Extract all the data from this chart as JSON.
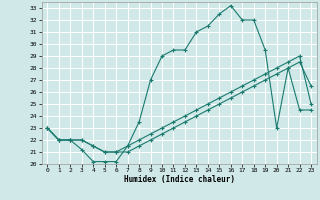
{
  "xlabel": "Humidex (Indice chaleur)",
  "background_color": "#d0e8e8",
  "grid_color": "#b8d8d8",
  "line_color": "#1a7a6e",
  "xlim": [
    -0.5,
    23.5
  ],
  "ylim": [
    20,
    33.5
  ],
  "yticks": [
    20,
    21,
    22,
    23,
    24,
    25,
    26,
    27,
    28,
    29,
    30,
    31,
    32,
    33
  ],
  "xticks": [
    0,
    1,
    2,
    3,
    4,
    5,
    6,
    7,
    8,
    9,
    10,
    11,
    12,
    13,
    14,
    15,
    16,
    17,
    18,
    19,
    20,
    21,
    22,
    23
  ],
  "line1_x": [
    0,
    1,
    2,
    3,
    4,
    5,
    6,
    7,
    8,
    9,
    10,
    11,
    12,
    13,
    14,
    15,
    16,
    17,
    18,
    19,
    20,
    21,
    22,
    23
  ],
  "line1_y": [
    23,
    22,
    22,
    21.2,
    20.2,
    20.2,
    20.2,
    21.5,
    23.5,
    27,
    29,
    29.5,
    29.5,
    31,
    31.5,
    32.5,
    33.2,
    32,
    32,
    29.5,
    23,
    28,
    28.5,
    26.5
  ],
  "line2_x": [
    0,
    1,
    2,
    3,
    4,
    5,
    6,
    7,
    8,
    9,
    10,
    11,
    12,
    13,
    14,
    15,
    16,
    17,
    18,
    19,
    20,
    21,
    22,
    23
  ],
  "line2_y": [
    23,
    22,
    22,
    22,
    21.5,
    21,
    21,
    21.5,
    22,
    22.5,
    23,
    23.5,
    24,
    24.5,
    25,
    25.5,
    26,
    26.5,
    27,
    27.5,
    28,
    28.5,
    29,
    25
  ],
  "line3_x": [
    0,
    1,
    2,
    3,
    4,
    5,
    6,
    7,
    8,
    9,
    10,
    11,
    12,
    13,
    14,
    15,
    16,
    17,
    18,
    19,
    20,
    21,
    22,
    23
  ],
  "line3_y": [
    23,
    22,
    22,
    22,
    21.5,
    21,
    21,
    21,
    21.5,
    22,
    22.5,
    23,
    23.5,
    24,
    24.5,
    25,
    25.5,
    26,
    26.5,
    27,
    27.5,
    28,
    24.5,
    24.5
  ]
}
